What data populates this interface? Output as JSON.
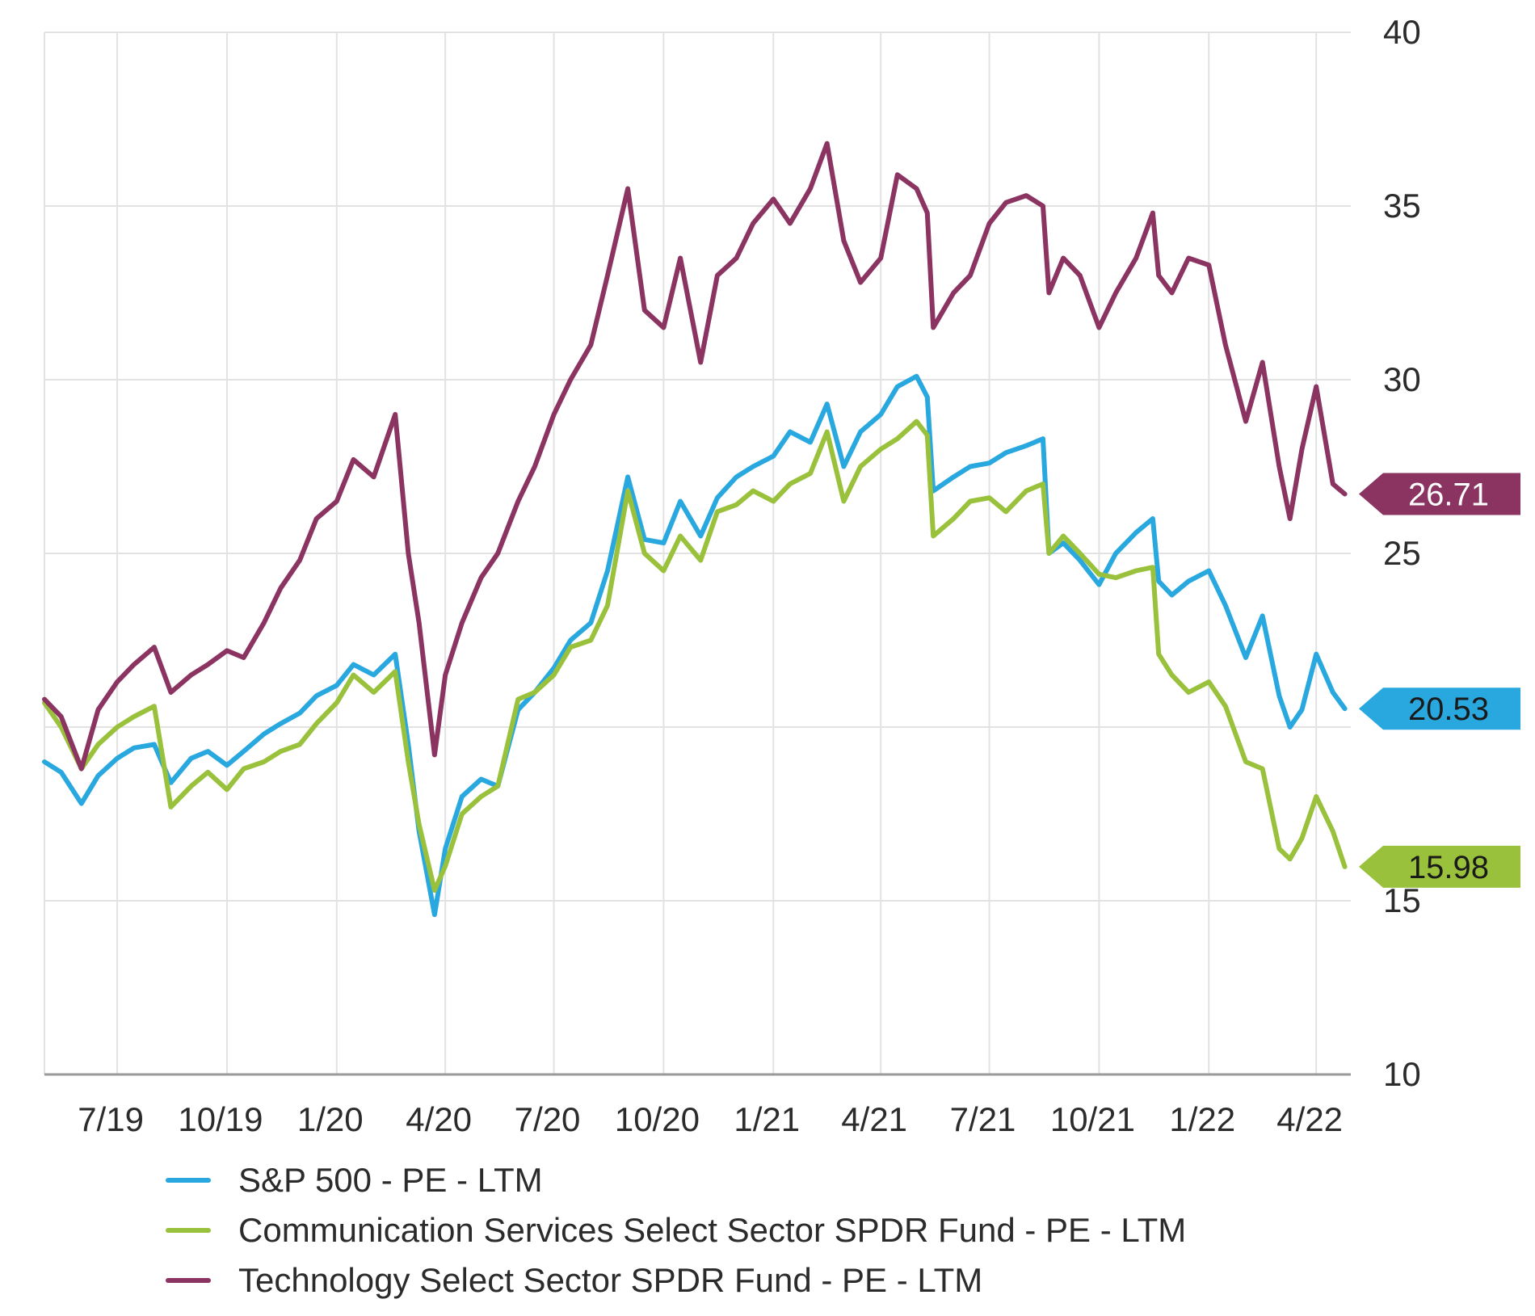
{
  "chart_data": {
    "type": "line",
    "title": "",
    "xlabel": "",
    "ylabel": "",
    "ylim": [
      10,
      40
    ],
    "y_ticks": [
      "10",
      "15",
      "25",
      "30",
      "35",
      "40"
    ],
    "x_range": [
      "2019-05-01",
      "2022-04-30"
    ],
    "x_ticks": [
      {
        "label": "7/19",
        "date": "2019-07-01"
      },
      {
        "label": "10/19",
        "date": "2019-10-01"
      },
      {
        "label": "1/20",
        "date": "2020-01-01"
      },
      {
        "label": "4/20",
        "date": "2020-04-01"
      },
      {
        "label": "7/20",
        "date": "2020-07-01"
      },
      {
        "label": "10/20",
        "date": "2020-10-01"
      },
      {
        "label": "1/21",
        "date": "2021-01-01"
      },
      {
        "label": "4/21",
        "date": "2021-04-01"
      },
      {
        "label": "7/21",
        "date": "2021-07-01"
      },
      {
        "label": "10/21",
        "date": "2021-10-01"
      },
      {
        "label": "1/22",
        "date": "2022-01-01"
      },
      {
        "label": "4/22",
        "date": "2022-04-01"
      }
    ],
    "grid": true,
    "legend_position": "bottom",
    "series": [
      {
        "name": "S&P 500 - PE - LTM",
        "color": "#29a8e0",
        "end_label": "20.53",
        "points": [
          [
            "2019-05-01",
            19.0
          ],
          [
            "2019-05-15",
            18.7
          ],
          [
            "2019-06-01",
            17.8
          ],
          [
            "2019-06-15",
            18.6
          ],
          [
            "2019-07-01",
            19.1
          ],
          [
            "2019-07-15",
            19.4
          ],
          [
            "2019-08-01",
            19.5
          ],
          [
            "2019-08-15",
            18.4
          ],
          [
            "2019-09-01",
            19.1
          ],
          [
            "2019-09-15",
            19.3
          ],
          [
            "2019-10-01",
            18.9
          ],
          [
            "2019-10-15",
            19.3
          ],
          [
            "2019-11-01",
            19.8
          ],
          [
            "2019-11-15",
            20.1
          ],
          [
            "2019-12-01",
            20.4
          ],
          [
            "2019-12-15",
            20.9
          ],
          [
            "2020-01-01",
            21.2
          ],
          [
            "2020-01-15",
            21.8
          ],
          [
            "2020-02-01",
            21.5
          ],
          [
            "2020-02-19",
            22.1
          ],
          [
            "2020-03-01",
            19.5
          ],
          [
            "2020-03-10",
            17.0
          ],
          [
            "2020-03-23",
            14.6
          ],
          [
            "2020-04-01",
            16.5
          ],
          [
            "2020-04-15",
            18.0
          ],
          [
            "2020-05-01",
            18.5
          ],
          [
            "2020-05-15",
            18.3
          ],
          [
            "2020-06-01",
            20.5
          ],
          [
            "2020-06-15",
            21.0
          ],
          [
            "2020-07-01",
            21.7
          ],
          [
            "2020-07-15",
            22.5
          ],
          [
            "2020-08-01",
            23.0
          ],
          [
            "2020-08-15",
            24.5
          ],
          [
            "2020-09-01",
            27.2
          ],
          [
            "2020-09-15",
            25.4
          ],
          [
            "2020-10-01",
            25.3
          ],
          [
            "2020-10-15",
            26.5
          ],
          [
            "2020-11-01",
            25.5
          ],
          [
            "2020-11-15",
            26.6
          ],
          [
            "2020-12-01",
            27.2
          ],
          [
            "2020-12-15",
            27.5
          ],
          [
            "2021-01-01",
            27.8
          ],
          [
            "2021-01-15",
            28.5
          ],
          [
            "2021-02-01",
            28.2
          ],
          [
            "2021-02-15",
            29.3
          ],
          [
            "2021-03-01",
            27.5
          ],
          [
            "2021-03-15",
            28.5
          ],
          [
            "2021-04-01",
            29.0
          ],
          [
            "2021-04-15",
            29.8
          ],
          [
            "2021-05-01",
            30.1
          ],
          [
            "2021-05-10",
            29.5
          ],
          [
            "2021-05-15",
            26.8
          ],
          [
            "2021-06-01",
            27.2
          ],
          [
            "2021-06-15",
            27.5
          ],
          [
            "2021-07-01",
            27.6
          ],
          [
            "2021-07-15",
            27.9
          ],
          [
            "2021-08-01",
            28.1
          ],
          [
            "2021-08-15",
            28.3
          ],
          [
            "2021-08-20",
            25.0
          ],
          [
            "2021-09-01",
            25.3
          ],
          [
            "2021-09-15",
            24.8
          ],
          [
            "2021-10-01",
            24.1
          ],
          [
            "2021-10-15",
            25.0
          ],
          [
            "2021-11-01",
            25.6
          ],
          [
            "2021-11-15",
            26.0
          ],
          [
            "2021-11-20",
            24.2
          ],
          [
            "2021-12-01",
            23.8
          ],
          [
            "2021-12-15",
            24.2
          ],
          [
            "2022-01-01",
            24.5
          ],
          [
            "2022-01-15",
            23.5
          ],
          [
            "2022-02-01",
            22.0
          ],
          [
            "2022-02-15",
            23.2
          ],
          [
            "2022-03-01",
            20.9
          ],
          [
            "2022-03-10",
            20.0
          ],
          [
            "2022-03-20",
            20.5
          ],
          [
            "2022-04-01",
            22.1
          ],
          [
            "2022-04-15",
            21.0
          ],
          [
            "2022-04-25",
            20.53
          ]
        ]
      },
      {
        "name": "Communication Services Select Sector SPDR Fund - PE - LTM",
        "color": "#99c13b",
        "end_label": "15.98",
        "points": [
          [
            "2019-05-01",
            20.7
          ],
          [
            "2019-05-15",
            20.0
          ],
          [
            "2019-06-01",
            18.8
          ],
          [
            "2019-06-15",
            19.5
          ],
          [
            "2019-07-01",
            20.0
          ],
          [
            "2019-07-15",
            20.3
          ],
          [
            "2019-08-01",
            20.6
          ],
          [
            "2019-08-15",
            17.7
          ],
          [
            "2019-09-01",
            18.3
          ],
          [
            "2019-09-15",
            18.7
          ],
          [
            "2019-10-01",
            18.2
          ],
          [
            "2019-10-15",
            18.8
          ],
          [
            "2019-11-01",
            19.0
          ],
          [
            "2019-11-15",
            19.3
          ],
          [
            "2019-12-01",
            19.5
          ],
          [
            "2019-12-15",
            20.1
          ],
          [
            "2020-01-01",
            20.7
          ],
          [
            "2020-01-15",
            21.5
          ],
          [
            "2020-02-01",
            21.0
          ],
          [
            "2020-02-19",
            21.6
          ],
          [
            "2020-03-01",
            19.0
          ],
          [
            "2020-03-10",
            17.2
          ],
          [
            "2020-03-23",
            15.3
          ],
          [
            "2020-04-01",
            16.0
          ],
          [
            "2020-04-15",
            17.5
          ],
          [
            "2020-05-01",
            18.0
          ],
          [
            "2020-05-15",
            18.3
          ],
          [
            "2020-06-01",
            20.8
          ],
          [
            "2020-06-15",
            21.0
          ],
          [
            "2020-07-01",
            21.5
          ],
          [
            "2020-07-15",
            22.3
          ],
          [
            "2020-08-01",
            22.5
          ],
          [
            "2020-08-15",
            23.5
          ],
          [
            "2020-09-01",
            26.8
          ],
          [
            "2020-09-15",
            25.0
          ],
          [
            "2020-10-01",
            24.5
          ],
          [
            "2020-10-15",
            25.5
          ],
          [
            "2020-11-01",
            24.8
          ],
          [
            "2020-11-15",
            26.2
          ],
          [
            "2020-12-01",
            26.4
          ],
          [
            "2020-12-15",
            26.8
          ],
          [
            "2021-01-01",
            26.5
          ],
          [
            "2021-01-15",
            27.0
          ],
          [
            "2021-02-01",
            27.3
          ],
          [
            "2021-02-15",
            28.5
          ],
          [
            "2021-03-01",
            26.5
          ],
          [
            "2021-03-15",
            27.5
          ],
          [
            "2021-04-01",
            28.0
          ],
          [
            "2021-04-15",
            28.3
          ],
          [
            "2021-05-01",
            28.8
          ],
          [
            "2021-05-10",
            28.4
          ],
          [
            "2021-05-15",
            25.5
          ],
          [
            "2021-06-01",
            26.0
          ],
          [
            "2021-06-15",
            26.5
          ],
          [
            "2021-07-01",
            26.6
          ],
          [
            "2021-07-15",
            26.2
          ],
          [
            "2021-08-01",
            26.8
          ],
          [
            "2021-08-15",
            27.0
          ],
          [
            "2021-08-20",
            25.0
          ],
          [
            "2021-09-01",
            25.5
          ],
          [
            "2021-09-15",
            25.0
          ],
          [
            "2021-10-01",
            24.4
          ],
          [
            "2021-10-15",
            24.3
          ],
          [
            "2021-11-01",
            24.5
          ],
          [
            "2021-11-15",
            24.6
          ],
          [
            "2021-11-20",
            22.1
          ],
          [
            "2021-12-01",
            21.5
          ],
          [
            "2021-12-15",
            21.0
          ],
          [
            "2022-01-01",
            21.3
          ],
          [
            "2022-01-15",
            20.6
          ],
          [
            "2022-02-01",
            19.0
          ],
          [
            "2022-02-15",
            18.8
          ],
          [
            "2022-03-01",
            16.5
          ],
          [
            "2022-03-10",
            16.2
          ],
          [
            "2022-03-20",
            16.8
          ],
          [
            "2022-04-01",
            18.0
          ],
          [
            "2022-04-15",
            17.0
          ],
          [
            "2022-04-25",
            15.98
          ]
        ]
      },
      {
        "name": "Technology Select Sector SPDR Fund - PE - LTM",
        "color": "#8b3462",
        "end_label": "26.71",
        "points": [
          [
            "2019-05-01",
            20.8
          ],
          [
            "2019-05-15",
            20.3
          ],
          [
            "2019-06-01",
            18.8
          ],
          [
            "2019-06-15",
            20.5
          ],
          [
            "2019-07-01",
            21.3
          ],
          [
            "2019-07-15",
            21.8
          ],
          [
            "2019-08-01",
            22.3
          ],
          [
            "2019-08-15",
            21.0
          ],
          [
            "2019-09-01",
            21.5
          ],
          [
            "2019-09-15",
            21.8
          ],
          [
            "2019-10-01",
            22.2
          ],
          [
            "2019-10-15",
            22.0
          ],
          [
            "2019-11-01",
            23.0
          ],
          [
            "2019-11-15",
            24.0
          ],
          [
            "2019-12-01",
            24.8
          ],
          [
            "2019-12-15",
            26.0
          ],
          [
            "2020-01-01",
            26.5
          ],
          [
            "2020-01-15",
            27.7
          ],
          [
            "2020-02-01",
            27.2
          ],
          [
            "2020-02-19",
            29.0
          ],
          [
            "2020-03-01",
            25.0
          ],
          [
            "2020-03-10",
            23.0
          ],
          [
            "2020-03-23",
            19.2
          ],
          [
            "2020-04-01",
            21.5
          ],
          [
            "2020-04-15",
            23.0
          ],
          [
            "2020-05-01",
            24.3
          ],
          [
            "2020-05-15",
            25.0
          ],
          [
            "2020-06-01",
            26.5
          ],
          [
            "2020-06-15",
            27.5
          ],
          [
            "2020-07-01",
            29.0
          ],
          [
            "2020-07-15",
            30.0
          ],
          [
            "2020-08-01",
            31.0
          ],
          [
            "2020-08-15",
            33.0
          ],
          [
            "2020-09-01",
            35.5
          ],
          [
            "2020-09-15",
            32.0
          ],
          [
            "2020-10-01",
            31.5
          ],
          [
            "2020-10-15",
            33.5
          ],
          [
            "2020-11-01",
            30.5
          ],
          [
            "2020-11-15",
            33.0
          ],
          [
            "2020-12-01",
            33.5
          ],
          [
            "2020-12-15",
            34.5
          ],
          [
            "2021-01-01",
            35.2
          ],
          [
            "2021-01-15",
            34.5
          ],
          [
            "2021-02-01",
            35.5
          ],
          [
            "2021-02-15",
            36.8
          ],
          [
            "2021-03-01",
            34.0
          ],
          [
            "2021-03-15",
            32.8
          ],
          [
            "2021-04-01",
            33.5
          ],
          [
            "2021-04-15",
            35.9
          ],
          [
            "2021-05-01",
            35.5
          ],
          [
            "2021-05-10",
            34.8
          ],
          [
            "2021-05-15",
            31.5
          ],
          [
            "2021-06-01",
            32.5
          ],
          [
            "2021-06-15",
            33.0
          ],
          [
            "2021-07-01",
            34.5
          ],
          [
            "2021-07-15",
            35.1
          ],
          [
            "2021-08-01",
            35.3
          ],
          [
            "2021-08-15",
            35.0
          ],
          [
            "2021-08-20",
            32.5
          ],
          [
            "2021-09-01",
            33.5
          ],
          [
            "2021-09-15",
            33.0
          ],
          [
            "2021-10-01",
            31.5
          ],
          [
            "2021-10-15",
            32.5
          ],
          [
            "2021-11-01",
            33.5
          ],
          [
            "2021-11-15",
            34.8
          ],
          [
            "2021-11-20",
            33.0
          ],
          [
            "2021-12-01",
            32.5
          ],
          [
            "2021-12-15",
            33.5
          ],
          [
            "2022-01-01",
            33.3
          ],
          [
            "2022-01-15",
            31.0
          ],
          [
            "2022-02-01",
            28.8
          ],
          [
            "2022-02-15",
            30.5
          ],
          [
            "2022-03-01",
            27.5
          ],
          [
            "2022-03-10",
            26.0
          ],
          [
            "2022-03-20",
            28.0
          ],
          [
            "2022-04-01",
            29.8
          ],
          [
            "2022-04-15",
            27.0
          ],
          [
            "2022-04-25",
            26.71
          ]
        ]
      }
    ]
  },
  "legend": [
    {
      "label": "S&P 500 - PE - LTM",
      "color": "#29a8e0"
    },
    {
      "label": "Communication Services Select Sector SPDR Fund - PE - LTM",
      "color": "#99c13b"
    },
    {
      "label": "Technology Select Sector SPDR Fund - PE - LTM",
      "color": "#8b3462"
    }
  ],
  "colors": {
    "grid": "#e2e2e2",
    "axis": "#9a9a9a",
    "text": "#2b2b2b",
    "label_text_dark": "#1a1a1a",
    "label_text_light": "#ffffff"
  }
}
